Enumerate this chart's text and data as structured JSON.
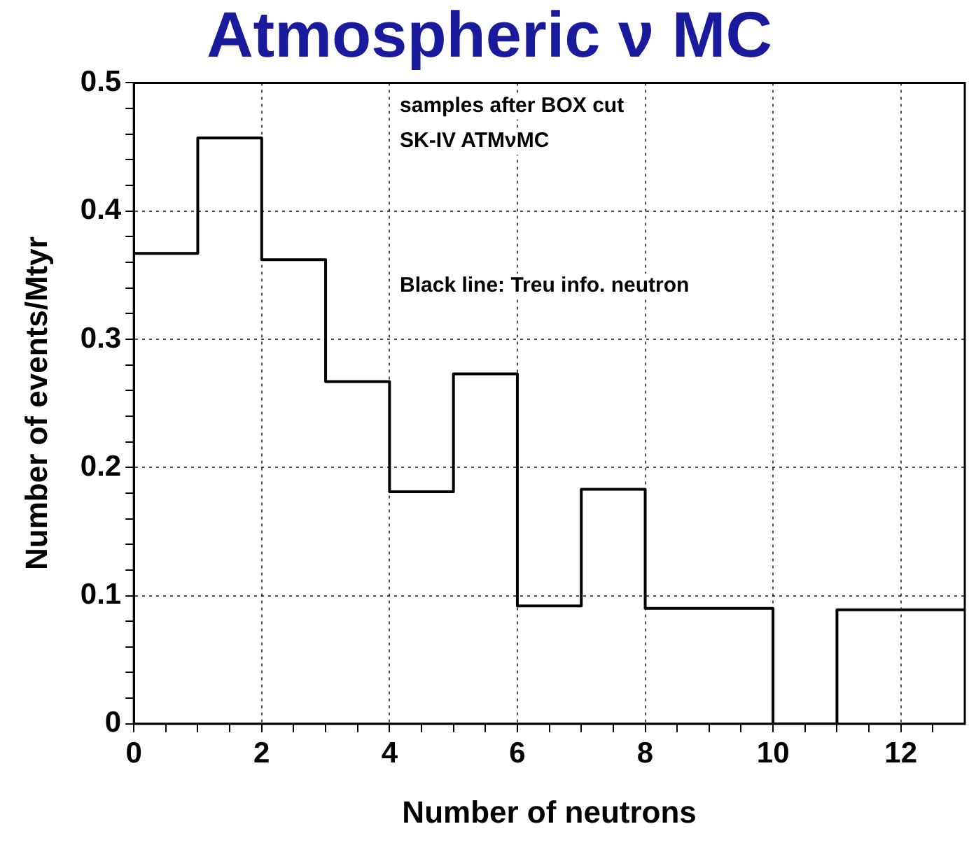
{
  "chart_data": {
    "type": "histogram",
    "title": "Atmospheric ν MC",
    "xlabel": "Number of neutrons",
    "ylabel": "Number of events/Mtyr",
    "annotations": [
      "samples after BOX cut",
      "SK-IV ATMνMC",
      "Black line: Treu info. neutron"
    ],
    "bins": [
      0,
      1,
      2,
      3,
      4,
      5,
      6,
      7,
      8,
      9,
      10,
      11,
      12,
      13
    ],
    "values": [
      0.367,
      0.457,
      0.362,
      0.267,
      0.181,
      0.273,
      0.092,
      0.183,
      0.09,
      0.09,
      0,
      0.089,
      0.089
    ],
    "color": "#000000",
    "xlim": [
      0,
      13
    ],
    "xticks": [
      0,
      {
        "value": 0.5,
        "label": null
      },
      2,
      {
        "value": 1,
        "label": null
      },
      {
        "value": 1.5,
        "label": null
      },
      {
        "value": 2.5,
        "label": null
      },
      {
        "value": 3,
        "label": null
      },
      {
        "value": 3.5,
        "label": null
      },
      4,
      {
        "value": 4.5,
        "label": null
      },
      {
        "value": 5,
        "label": null
      },
      {
        "value": 5.5,
        "label": null
      },
      6,
      {
        "value": 6.5,
        "label": null
      },
      {
        "value": 7,
        "label": null
      },
      {
        "value": 7.5,
        "label": null
      },
      8,
      {
        "value": 8.5,
        "label": null
      },
      {
        "value": 9,
        "label": null
      },
      {
        "value": 9.5,
        "label": null
      },
      10,
      {
        "value": 10.5,
        "label": null
      },
      {
        "value": 11,
        "label": null
      },
      {
        "value": 11.5,
        "label": null
      },
      12,
      {
        "value": 12.5,
        "label": null
      }
    ],
    "ylim": [
      0,
      0.5
    ],
    "yticks": [
      0,
      {
        "value": 0.02,
        "label": null
      },
      {
        "value": 0.04,
        "label": null
      },
      {
        "value": 0.06,
        "label": null
      },
      {
        "value": 0.08,
        "label": null
      },
      0.1,
      {
        "value": 0.12,
        "label": null
      },
      {
        "value": 0.14,
        "label": null
      },
      {
        "value": 0.16,
        "label": null
      },
      {
        "value": 0.18,
        "label": null
      },
      0.2,
      {
        "value": 0.22,
        "label": null
      },
      {
        "value": 0.24,
        "label": null
      },
      {
        "value": 0.26,
        "label": null
      },
      {
        "value": 0.28,
        "label": null
      },
      0.3,
      {
        "value": 0.32,
        "label": null
      },
      {
        "value": 0.34,
        "label": null
      },
      {
        "value": 0.36,
        "label": null
      },
      {
        "value": 0.38,
        "label": null
      },
      0.4,
      {
        "value": 0.42,
        "label": null
      },
      {
        "value": 0.44,
        "label": null
      },
      {
        "value": 0.46,
        "label": null
      },
      {
        "value": 0.48,
        "label": null
      },
      0.5
    ],
    "grid": true,
    "legend": false
  }
}
